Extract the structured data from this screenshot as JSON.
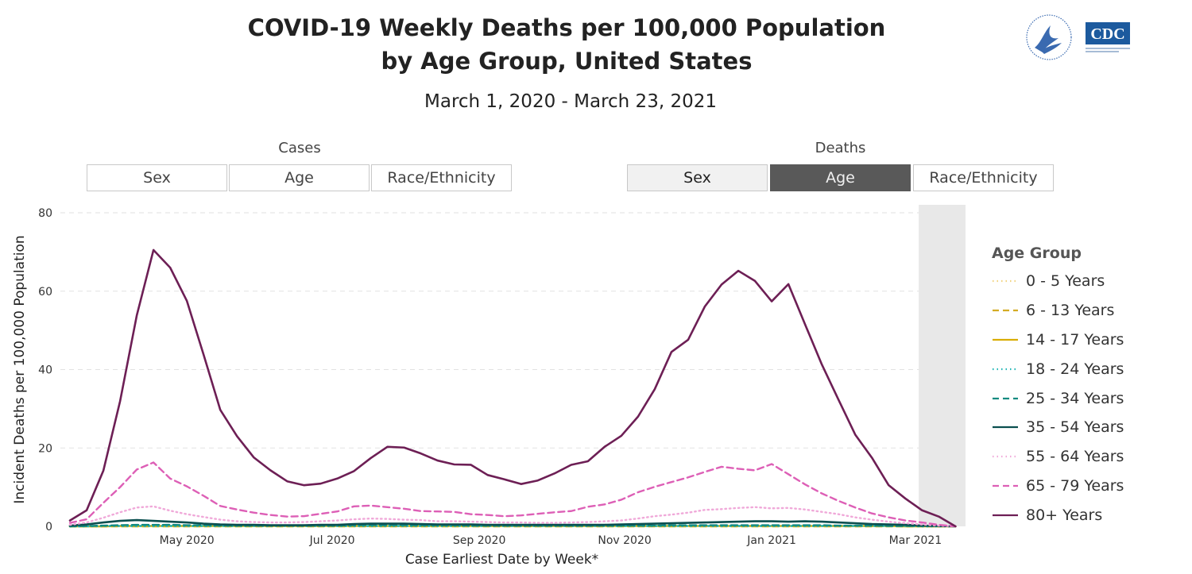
{
  "header": {
    "title_line1": "COVID-19 Weekly Deaths per 100,000 Population",
    "title_line2": "by Age Group, United States",
    "subtitle": "March 1, 2020 - March 23, 2021",
    "logo_text": "CDC"
  },
  "toggles": {
    "cases_label": "Cases",
    "deaths_label": "Deaths",
    "cases_buttons": [
      "Sex",
      "Age",
      "Race/Ethnicity"
    ],
    "deaths_buttons": [
      "Sex",
      "Age",
      "Race/Ethnicity"
    ],
    "selected": "Age"
  },
  "legend": {
    "title": "Age Group",
    "items": [
      {
        "label": "0 - 5 Years",
        "color": "#f1d37f",
        "dash": "dot"
      },
      {
        "label": "6 - 13 Years",
        "color": "#d4ac24",
        "dash": "dash"
      },
      {
        "label": "14 - 17 Years",
        "color": "#d9ad05",
        "dash": "solid"
      },
      {
        "label": "18 - 24 Years",
        "color": "#1fb5b5",
        "dash": "dot"
      },
      {
        "label": "25 - 34 Years",
        "color": "#118a80",
        "dash": "dash"
      },
      {
        "label": "35 - 54 Years",
        "color": "#0b4f4f",
        "dash": "solid"
      },
      {
        "label": "55 - 64 Years",
        "color": "#f0a9d9",
        "dash": "dot"
      },
      {
        "label": "65 - 79 Years",
        "color": "#dd5fb6",
        "dash": "dash"
      },
      {
        "label": "80+ Years",
        "color": "#6d1f55",
        "dash": "solid"
      }
    ]
  },
  "chart_data": {
    "type": "line",
    "title": "COVID-19 Weekly Deaths per 100,000 Population by Age Group, United States",
    "xlabel": "Case Earliest Date by Week*",
    "ylabel": "Incident Deaths per 100,000 Population",
    "ylim": [
      0,
      80
    ],
    "yticks": [
      0,
      20,
      40,
      60,
      80
    ],
    "x_start": "2020-03-01",
    "x_interval": "week",
    "x_ticks": [
      {
        "label": "May 2020",
        "week": 7.0
      },
      {
        "label": "Jul 2020",
        "week": 15.7
      },
      {
        "label": "Sep 2020",
        "week": 24.5
      },
      {
        "label": "Nov 2020",
        "week": 33.2
      },
      {
        "label": "Jan 2021",
        "week": 42.0
      },
      {
        "label": "Mar 2021",
        "week": 50.6
      }
    ],
    "shaded_from_week": 50.8,
    "shaded_to_week": 53.6,
    "grid": "horizontal dashed",
    "series": [
      {
        "name": "0 - 5 Years",
        "values": [
          0.1,
          0.1,
          0.1,
          0.1,
          0.1,
          0.1,
          0.1,
          0.1,
          0.1,
          0.1,
          0.1,
          0.1,
          0.1,
          0.1,
          0.1,
          0.1,
          0.1,
          0.1,
          0.1,
          0.1,
          0.1,
          0.1,
          0.1,
          0.1,
          0.1,
          0.1,
          0.1,
          0.1,
          0.1,
          0.1,
          0.1,
          0.1,
          0.1,
          0.1,
          0.1,
          0.1,
          0.1,
          0.1,
          0.1,
          0.1,
          0.1,
          0.1,
          0.1,
          0.1,
          0.1,
          0.1,
          0.1,
          0.1,
          0.1,
          0.1,
          0.1,
          0.1,
          0.1,
          0.0
        ]
      },
      {
        "name": "6 - 13 Years",
        "values": [
          0.0,
          0.0,
          0.0,
          0.0,
          0.0,
          0.0,
          0.0,
          0.0,
          0.0,
          0.0,
          0.0,
          0.0,
          0.0,
          0.0,
          0.0,
          0.0,
          0.0,
          0.0,
          0.0,
          0.0,
          0.0,
          0.0,
          0.0,
          0.0,
          0.0,
          0.0,
          0.0,
          0.0,
          0.0,
          0.0,
          0.0,
          0.0,
          0.0,
          0.0,
          0.0,
          0.0,
          0.0,
          0.0,
          0.0,
          0.0,
          0.0,
          0.0,
          0.0,
          0.0,
          0.0,
          0.0,
          0.0,
          0.0,
          0.0,
          0.0,
          0.0,
          0.0,
          0.0,
          0.0
        ]
      },
      {
        "name": "14 - 17 Years",
        "values": [
          0.0,
          0.0,
          0.0,
          0.1,
          0.1,
          0.1,
          0.1,
          0.1,
          0.1,
          0.1,
          0.1,
          0.1,
          0.1,
          0.1,
          0.1,
          0.1,
          0.1,
          0.1,
          0.1,
          0.1,
          0.1,
          0.1,
          0.1,
          0.1,
          0.1,
          0.1,
          0.1,
          0.1,
          0.1,
          0.1,
          0.1,
          0.1,
          0.1,
          0.1,
          0.1,
          0.1,
          0.1,
          0.1,
          0.1,
          0.1,
          0.1,
          0.1,
          0.1,
          0.1,
          0.1,
          0.1,
          0.1,
          0.1,
          0.1,
          0.1,
          0.0,
          0.0,
          0.0,
          0.0
        ]
      },
      {
        "name": "18 - 24 Years",
        "values": [
          0.0,
          0.0,
          0.1,
          0.1,
          0.1,
          0.1,
          0.1,
          0.1,
          0.1,
          0.1,
          0.1,
          0.1,
          0.1,
          0.1,
          0.1,
          0.1,
          0.1,
          0.1,
          0.1,
          0.1,
          0.1,
          0.1,
          0.1,
          0.1,
          0.1,
          0.1,
          0.1,
          0.1,
          0.1,
          0.1,
          0.1,
          0.1,
          0.1,
          0.1,
          0.1,
          0.1,
          0.1,
          0.1,
          0.1,
          0.1,
          0.1,
          0.1,
          0.1,
          0.1,
          0.1,
          0.1,
          0.1,
          0.1,
          0.1,
          0.1,
          0.1,
          0.0,
          0.0,
          0.0
        ]
      },
      {
        "name": "25 - 34 Years",
        "values": [
          0.0,
          0.1,
          0.2,
          0.3,
          0.4,
          0.4,
          0.4,
          0.3,
          0.3,
          0.2,
          0.2,
          0.2,
          0.2,
          0.2,
          0.2,
          0.2,
          0.2,
          0.3,
          0.3,
          0.3,
          0.3,
          0.3,
          0.3,
          0.3,
          0.2,
          0.2,
          0.2,
          0.2,
          0.2,
          0.2,
          0.2,
          0.2,
          0.2,
          0.2,
          0.2,
          0.2,
          0.3,
          0.3,
          0.3,
          0.3,
          0.3,
          0.3,
          0.3,
          0.3,
          0.3,
          0.3,
          0.2,
          0.2,
          0.2,
          0.1,
          0.1,
          0.1,
          0.1,
          0.0
        ]
      },
      {
        "name": "35 - 54 Years",
        "values": [
          0.2,
          0.5,
          1.0,
          1.4,
          1.6,
          1.4,
          1.2,
          1.0,
          0.7,
          0.5,
          0.4,
          0.4,
          0.3,
          0.3,
          0.3,
          0.4,
          0.4,
          0.6,
          0.7,
          0.7,
          0.7,
          0.6,
          0.5,
          0.5,
          0.5,
          0.4,
          0.4,
          0.4,
          0.4,
          0.4,
          0.4,
          0.4,
          0.4,
          0.5,
          0.6,
          0.7,
          0.8,
          0.9,
          1.0,
          1.1,
          1.2,
          1.3,
          1.3,
          1.2,
          1.3,
          1.2,
          1.0,
          0.8,
          0.6,
          0.5,
          0.4,
          0.2,
          0.1,
          0.0
        ]
      },
      {
        "name": "55 - 64 Years",
        "values": [
          0.4,
          1.0,
          2.2,
          3.6,
          4.8,
          5.1,
          4.0,
          3.1,
          2.4,
          1.7,
          1.3,
          1.1,
          1.0,
          1.0,
          1.1,
          1.3,
          1.5,
          1.8,
          2.0,
          1.9,
          1.7,
          1.6,
          1.3,
          1.3,
          1.2,
          1.1,
          1.0,
          1.0,
          0.9,
          0.9,
          1.0,
          1.1,
          1.3,
          1.5,
          2.0,
          2.6,
          3.0,
          3.5,
          4.2,
          4.4,
          4.7,
          4.9,
          4.6,
          4.7,
          4.3,
          3.7,
          3.1,
          2.3,
          1.7,
          1.2,
          0.8,
          0.5,
          0.2,
          0.0
        ]
      },
      {
        "name": "65 - 79 Years",
        "values": [
          0.9,
          1.8,
          6.0,
          10.0,
          14.5,
          16.3,
          12.2,
          10.2,
          7.8,
          5.2,
          4.3,
          3.5,
          2.9,
          2.5,
          2.6,
          3.2,
          3.8,
          5.1,
          5.3,
          4.9,
          4.5,
          3.9,
          3.8,
          3.7,
          3.1,
          2.9,
          2.6,
          2.8,
          3.2,
          3.6,
          3.9,
          5.0,
          5.6,
          6.8,
          8.7,
          10.1,
          11.3,
          12.5,
          13.9,
          15.2,
          14.7,
          14.3,
          15.9,
          13.3,
          10.7,
          8.4,
          6.5,
          4.8,
          3.3,
          2.3,
          1.5,
          1.0,
          0.4,
          0.0
        ]
      },
      {
        "name": "80+ Years",
        "values": [
          1.5,
          4.1,
          14.2,
          31.9,
          53.8,
          70.5,
          66.0,
          57.5,
          43.8,
          29.7,
          23.0,
          17.6,
          14.3,
          11.5,
          10.5,
          10.9,
          12.2,
          14.1,
          17.4,
          20.3,
          20.1,
          18.6,
          16.8,
          15.8,
          15.7,
          13.1,
          12.0,
          10.8,
          11.7,
          13.5,
          15.7,
          16.6,
          20.3,
          23.1,
          28.0,
          35.0,
          44.5,
          47.6,
          56.1,
          61.7,
          65.2,
          62.6,
          57.4,
          61.8,
          51.5,
          41.3,
          32.3,
          23.4,
          17.5,
          10.5,
          7.1,
          4.1,
          2.5,
          0.0
        ]
      }
    ]
  }
}
